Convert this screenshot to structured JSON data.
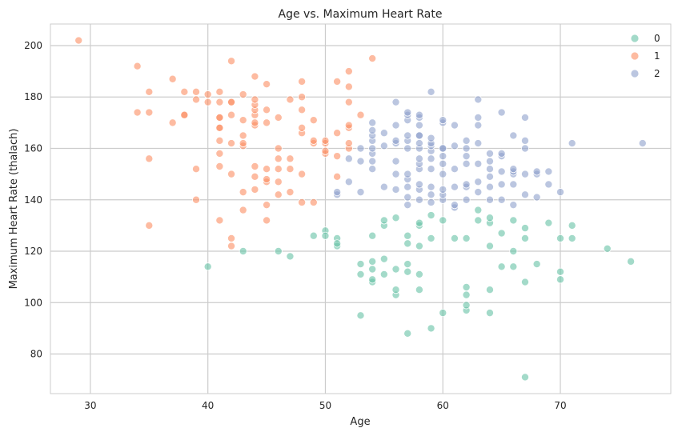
{
  "chart_data": {
    "type": "scatter",
    "title": "Age vs. Maximum Heart Rate",
    "xlabel": "Age",
    "ylabel": "Maximum Heart Rate (thalach)",
    "xlim": [
      26.6,
      79.4
    ],
    "ylim": [
      64.6,
      208.4
    ],
    "xticks": [
      30,
      40,
      50,
      60,
      70
    ],
    "yticks": [
      80,
      100,
      120,
      140,
      160,
      180,
      200
    ],
    "grid": true,
    "legend_position": "top-right",
    "series": [
      {
        "name": "0",
        "color": "#66c2a5",
        "points": [
          [
            40,
            114
          ],
          [
            43,
            120
          ],
          [
            46,
            120
          ],
          [
            47,
            118
          ],
          [
            49,
            126
          ],
          [
            50,
            128
          ],
          [
            50,
            126
          ],
          [
            51,
            125
          ],
          [
            51,
            122
          ],
          [
            51,
            123
          ],
          [
            53,
            95
          ],
          [
            53,
            111
          ],
          [
            53,
            115
          ],
          [
            54,
            108
          ],
          [
            54,
            109
          ],
          [
            54,
            113
          ],
          [
            54,
            116
          ],
          [
            54,
            126
          ],
          [
            55,
            117
          ],
          [
            55,
            111
          ],
          [
            55,
            130
          ],
          [
            55,
            132
          ],
          [
            56,
            103
          ],
          [
            56,
            105
          ],
          [
            56,
            113
          ],
          [
            56,
            133
          ],
          [
            57,
            88
          ],
          [
            57,
            112
          ],
          [
            57,
            115
          ],
          [
            57,
            123
          ],
          [
            57,
            126
          ],
          [
            58,
            105
          ],
          [
            58,
            111
          ],
          [
            58,
            122
          ],
          [
            58,
            130
          ],
          [
            58,
            131
          ],
          [
            59,
            90
          ],
          [
            59,
            125
          ],
          [
            59,
            134
          ],
          [
            60,
            96
          ],
          [
            60,
            132
          ],
          [
            61,
            125
          ],
          [
            62,
            97
          ],
          [
            62,
            99
          ],
          [
            62,
            103
          ],
          [
            62,
            106
          ],
          [
            62,
            125
          ],
          [
            63,
            132
          ],
          [
            63,
            136
          ],
          [
            64,
            96
          ],
          [
            64,
            105
          ],
          [
            64,
            122
          ],
          [
            64,
            131
          ],
          [
            64,
            133
          ],
          [
            65,
            114
          ],
          [
            65,
            127
          ],
          [
            66,
            114
          ],
          [
            66,
            120
          ],
          [
            66,
            132
          ],
          [
            67,
            71
          ],
          [
            67,
            108
          ],
          [
            67,
            125
          ],
          [
            67,
            129
          ],
          [
            68,
            115
          ],
          [
            69,
            131
          ],
          [
            70,
            109
          ],
          [
            70,
            112
          ],
          [
            70,
            125
          ],
          [
            71,
            125
          ],
          [
            71,
            130
          ],
          [
            74,
            121
          ],
          [
            76,
            116
          ]
        ]
      },
      {
        "name": "1",
        "color": "#fc8d62",
        "points": [
          [
            29,
            202
          ],
          [
            34,
            174
          ],
          [
            34,
            192
          ],
          [
            35,
            130
          ],
          [
            35,
            156
          ],
          [
            35,
            174
          ],
          [
            35,
            182
          ],
          [
            37,
            170
          ],
          [
            37,
            187
          ],
          [
            38,
            173
          ],
          [
            38,
            173
          ],
          [
            38,
            182
          ],
          [
            39,
            140
          ],
          [
            39,
            152
          ],
          [
            39,
            179
          ],
          [
            39,
            182
          ],
          [
            40,
            178
          ],
          [
            40,
            181
          ],
          [
            41,
            132
          ],
          [
            41,
            153
          ],
          [
            41,
            158
          ],
          [
            41,
            163
          ],
          [
            41,
            168
          ],
          [
            41,
            168
          ],
          [
            41,
            172
          ],
          [
            41,
            172
          ],
          [
            41,
            178
          ],
          [
            41,
            182
          ],
          [
            42,
            122
          ],
          [
            42,
            125
          ],
          [
            42,
            150
          ],
          [
            42,
            162
          ],
          [
            42,
            173
          ],
          [
            42,
            178
          ],
          [
            42,
            178
          ],
          [
            42,
            194
          ],
          [
            43,
            136
          ],
          [
            43,
            143
          ],
          [
            43,
            161
          ],
          [
            43,
            162
          ],
          [
            43,
            165
          ],
          [
            43,
            171
          ],
          [
            43,
            181
          ],
          [
            44,
            144
          ],
          [
            44,
            149
          ],
          [
            44,
            153
          ],
          [
            44,
            169
          ],
          [
            44,
            170
          ],
          [
            44,
            173
          ],
          [
            44,
            175
          ],
          [
            44,
            177
          ],
          [
            44,
            179
          ],
          [
            44,
            188
          ],
          [
            45,
            132
          ],
          [
            45,
            138
          ],
          [
            45,
            147
          ],
          [
            45,
            148
          ],
          [
            45,
            152
          ],
          [
            45,
            170
          ],
          [
            45,
            175
          ],
          [
            45,
            185
          ],
          [
            46,
            142
          ],
          [
            46,
            147
          ],
          [
            46,
            152
          ],
          [
            46,
            156
          ],
          [
            46,
            160
          ],
          [
            46,
            172
          ],
          [
            47,
            143
          ],
          [
            47,
            152
          ],
          [
            47,
            156
          ],
          [
            47,
            179
          ],
          [
            48,
            139
          ],
          [
            48,
            150
          ],
          [
            48,
            166
          ],
          [
            48,
            168
          ],
          [
            48,
            175
          ],
          [
            48,
            180
          ],
          [
            48,
            186
          ],
          [
            49,
            139
          ],
          [
            49,
            162
          ],
          [
            49,
            163
          ],
          [
            49,
            171
          ],
          [
            50,
            158
          ],
          [
            50,
            159
          ],
          [
            50,
            162
          ],
          [
            50,
            163
          ],
          [
            51,
            149
          ],
          [
            51,
            157
          ],
          [
            51,
            166
          ],
          [
            51,
            186
          ],
          [
            52,
            160
          ],
          [
            52,
            162
          ],
          [
            52,
            168
          ],
          [
            52,
            169
          ],
          [
            52,
            178
          ],
          [
            52,
            184
          ],
          [
            52,
            190
          ],
          [
            53,
            173
          ],
          [
            54,
            195
          ]
        ]
      },
      {
        "name": "2",
        "color": "#8da0cb",
        "points": [
          [
            51,
            142
          ],
          [
            51,
            143
          ],
          [
            52,
            147
          ],
          [
            52,
            156
          ],
          [
            53,
            143
          ],
          [
            53,
            155
          ],
          [
            53,
            160
          ],
          [
            54,
            152
          ],
          [
            54,
            155
          ],
          [
            54,
            158
          ],
          [
            54,
            160
          ],
          [
            54,
            163
          ],
          [
            54,
            165
          ],
          [
            54,
            167
          ],
          [
            54,
            170
          ],
          [
            55,
            145
          ],
          [
            55,
            161
          ],
          [
            55,
            166
          ],
          [
            56,
            144
          ],
          [
            56,
            150
          ],
          [
            56,
            155
          ],
          [
            56,
            162
          ],
          [
            56,
            163
          ],
          [
            56,
            169
          ],
          [
            56,
            178
          ],
          [
            57,
            138
          ],
          [
            57,
            141
          ],
          [
            57,
            145
          ],
          [
            57,
            148
          ],
          [
            57,
            150
          ],
          [
            57,
            160
          ],
          [
            57,
            163
          ],
          [
            57,
            165
          ],
          [
            57,
            171
          ],
          [
            57,
            173
          ],
          [
            57,
            174
          ],
          [
            58,
            140
          ],
          [
            58,
            144
          ],
          [
            58,
            146
          ],
          [
            58,
            152
          ],
          [
            58,
            154
          ],
          [
            58,
            156
          ],
          [
            58,
            160
          ],
          [
            58,
            162
          ],
          [
            58,
            165
          ],
          [
            58,
            165
          ],
          [
            58,
            169
          ],
          [
            58,
            172
          ],
          [
            58,
            173
          ],
          [
            59,
            139
          ],
          [
            59,
            142
          ],
          [
            59,
            145
          ],
          [
            59,
            152
          ],
          [
            59,
            156
          ],
          [
            59,
            159
          ],
          [
            59,
            161
          ],
          [
            59,
            162
          ],
          [
            59,
            164
          ],
          [
            59,
            182
          ],
          [
            60,
            140
          ],
          [
            60,
            142
          ],
          [
            60,
            144
          ],
          [
            60,
            150
          ],
          [
            60,
            154
          ],
          [
            60,
            157
          ],
          [
            60,
            160
          ],
          [
            60,
            160
          ],
          [
            60,
            170
          ],
          [
            60,
            171
          ],
          [
            61,
            137
          ],
          [
            61,
            138
          ],
          [
            61,
            145
          ],
          [
            61,
            152
          ],
          [
            61,
            161
          ],
          [
            61,
            169
          ],
          [
            62,
            140
          ],
          [
            62,
            145
          ],
          [
            62,
            146
          ],
          [
            62,
            154
          ],
          [
            62,
            157
          ],
          [
            62,
            160
          ],
          [
            62,
            163
          ],
          [
            63,
            143
          ],
          [
            63,
            147
          ],
          [
            63,
            154
          ],
          [
            63,
            162
          ],
          [
            63,
            169
          ],
          [
            63,
            172
          ],
          [
            63,
            179
          ],
          [
            64,
            140
          ],
          [
            64,
            145
          ],
          [
            64,
            149
          ],
          [
            64,
            152
          ],
          [
            64,
            155
          ],
          [
            64,
            158
          ],
          [
            65,
            140
          ],
          [
            65,
            146
          ],
          [
            65,
            151
          ],
          [
            65,
            157
          ],
          [
            65,
            158
          ],
          [
            65,
            174
          ],
          [
            66,
            138
          ],
          [
            66,
            146
          ],
          [
            66,
            150
          ],
          [
            66,
            151
          ],
          [
            66,
            152
          ],
          [
            66,
            165
          ],
          [
            67,
            142
          ],
          [
            67,
            150
          ],
          [
            67,
            160
          ],
          [
            67,
            163
          ],
          [
            67,
            172
          ],
          [
            68,
            141
          ],
          [
            68,
            150
          ],
          [
            68,
            151
          ],
          [
            69,
            146
          ],
          [
            69,
            151
          ],
          [
            70,
            143
          ],
          [
            71,
            162
          ],
          [
            77,
            162
          ]
        ]
      }
    ]
  }
}
